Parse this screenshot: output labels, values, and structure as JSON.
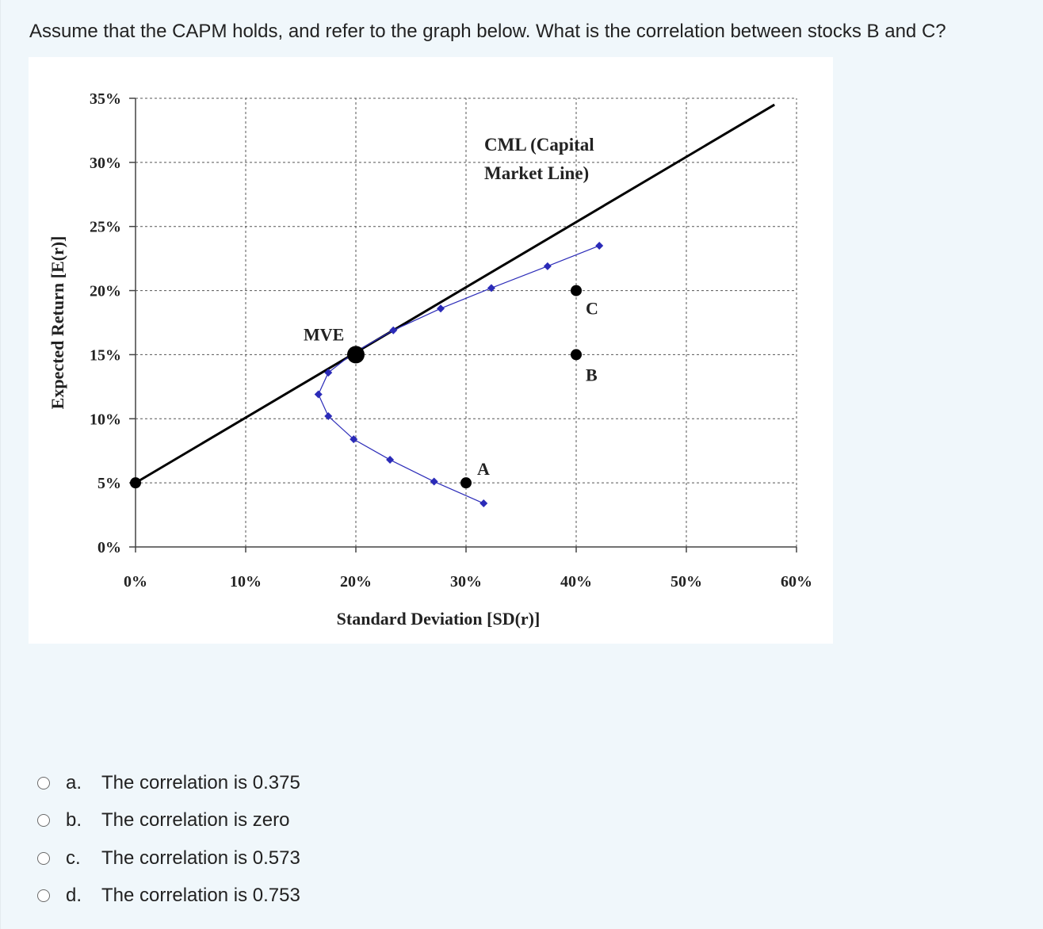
{
  "question": {
    "text": "Assume that the CAPM holds, and refer to the graph below. What is the correlation between stocks B and C?"
  },
  "chart_data": {
    "type": "line",
    "xlabel": "Standard Deviation [SD(r)]",
    "ylabel": "Expected Return [E(r)]",
    "xlim": [
      0,
      60
    ],
    "ylim": [
      0,
      35
    ],
    "x_ticks": [
      0,
      10,
      20,
      30,
      40,
      50,
      60
    ],
    "x_tick_labels": [
      "0%",
      "10%",
      "20%",
      "30%",
      "40%",
      "50%",
      "60%"
    ],
    "y_ticks": [
      0,
      5,
      10,
      15,
      20,
      25,
      30,
      35
    ],
    "y_tick_labels": [
      "0%",
      "5%",
      "10%",
      "15%",
      "20%",
      "25%",
      "30%",
      "35%"
    ],
    "grid": true,
    "series": [
      {
        "name": "CML (Capital Market Line)",
        "color": "#000000",
        "x": [
          0,
          58
        ],
        "y": [
          5,
          34.5
        ]
      },
      {
        "color": "#2b2bb8",
        "x": [
          31.6,
          27.1,
          23.1,
          19.8,
          17.5,
          16.6,
          17.5,
          19.9,
          23.4,
          27.7,
          32.3,
          37.4,
          42.1
        ],
        "y": [
          3.4,
          5.1,
          6.8,
          8.4,
          10.2,
          11.9,
          13.6,
          15.2,
          16.9,
          18.6,
          20.2,
          21.9,
          23.5
        ]
      }
    ],
    "points": [
      {
        "label": "MVE",
        "x": 20,
        "y": 15
      },
      {
        "label": "A",
        "x": 30,
        "y": 5
      },
      {
        "label": "B",
        "x": 40,
        "y": 15
      },
      {
        "label": "C",
        "x": 40,
        "y": 20
      },
      {
        "label": "",
        "x": 0,
        "y": 5
      }
    ],
    "annotations": [
      "CML (Capital",
      "Market Line)"
    ]
  },
  "answers": [
    {
      "letter": "a.",
      "text": "The correlation is 0.375"
    },
    {
      "letter": "b.",
      "text": "The correlation is zero"
    },
    {
      "letter": "c.",
      "text": "The correlation is 0.573"
    },
    {
      "letter": "d.",
      "text": "The correlation is 0.753"
    }
  ],
  "colors": {
    "background": "#f0f7fb",
    "frontier": "#2b2bb8",
    "cml": "#000000"
  }
}
